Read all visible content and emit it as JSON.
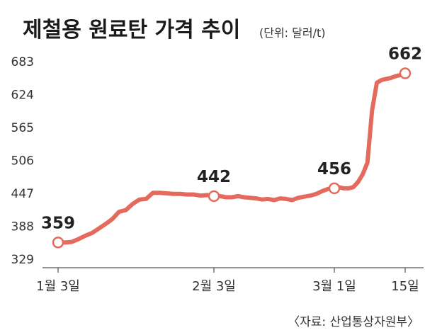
{
  "chart_data": {
    "type": "line",
    "title": "제철용 원료탄 가격 추이",
    "unit": "(단위: 달러/t)",
    "source": "〈자료: 산업통상자원부〉",
    "ylim": [
      329,
      683
    ],
    "yticks": [
      683,
      624,
      565,
      506,
      447,
      388,
      329
    ],
    "x_ticks": [
      "1월 3일",
      "2월 3일",
      "3월 1일",
      "15일"
    ],
    "labeled_points": [
      {
        "label": "359",
        "value": 359,
        "tick": "1월 3일"
      },
      {
        "label": "442",
        "value": 442,
        "tick": "2월 3일"
      },
      {
        "label": "456",
        "value": 456,
        "tick": "3월 1일"
      },
      {
        "label": "662",
        "value": 662,
        "tick": "15일"
      }
    ],
    "series": [
      {
        "color": "#e46a5e",
        "values": [
          359,
          359,
          360,
          365,
          371,
          376,
          384,
          392,
          401,
          414,
          417,
          428,
          436,
          437,
          448,
          448,
          447,
          446,
          446,
          445,
          445,
          443,
          444,
          442,
          442,
          440,
          440,
          442,
          440,
          439,
          438,
          436,
          437,
          435,
          438,
          437,
          435,
          439,
          441,
          443,
          446,
          451,
          455,
          456,
          458,
          456,
          456,
          458,
          467,
          481,
          502,
          596,
          645,
          650,
          652,
          654,
          657,
          659,
          662
        ]
      }
    ],
    "grid": false
  }
}
